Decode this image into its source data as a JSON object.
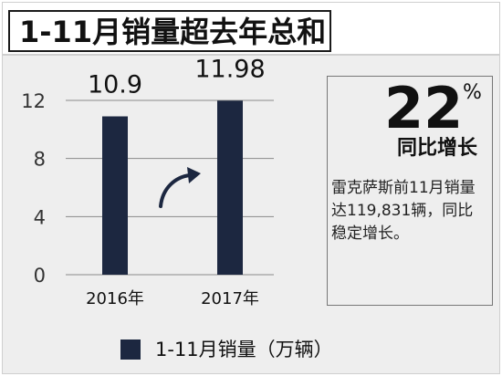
{
  "header": {
    "title": "1-11月销量超去年总和"
  },
  "chart_data": {
    "type": "bar",
    "categories": [
      "2016年",
      "2017年"
    ],
    "values": [
      10.9,
      11.98
    ],
    "value_labels": [
      "10.9",
      "11.98"
    ],
    "yticks": [
      0,
      4,
      8,
      12
    ],
    "ylim": [
      0,
      12
    ],
    "grid": true,
    "title": "",
    "xlabel": "",
    "ylabel": "",
    "legend": {
      "position": "bottom",
      "label": "1-11月销量（万辆）"
    },
    "bar_color": "#1c2740"
  },
  "callout": {
    "percent": "22",
    "percent_sign": "%",
    "caption": "同比增长",
    "text": "雷克萨斯前11月销量达119,831辆，同比稳定增长。"
  },
  "colors": {
    "bar": "#1c2740",
    "background": "#eeeeee",
    "arrow": "#1c2740"
  },
  "icons": {
    "trend": "curved-arrow-up-icon"
  }
}
